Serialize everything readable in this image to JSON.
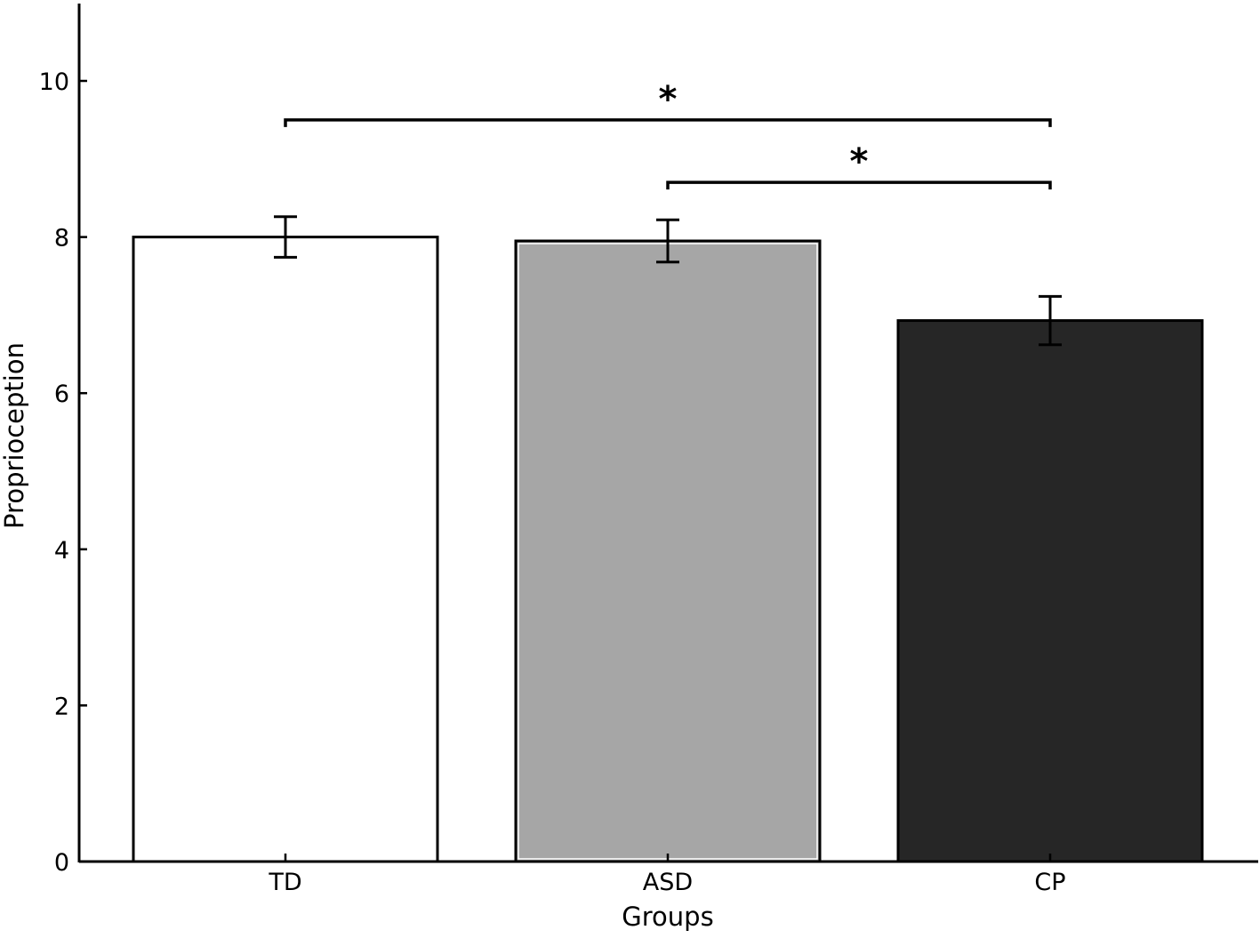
{
  "chart_data": {
    "type": "bar",
    "title": "",
    "xlabel": "Groups",
    "ylabel": "Proprioception",
    "categories": [
      "TD",
      "ASD",
      "CP"
    ],
    "values": [
      8.0,
      7.95,
      6.93
    ],
    "errors": [
      0.26,
      0.27,
      0.31
    ],
    "bar_colors": [
      "#ffffff",
      "#a6a6a6",
      "#262626"
    ],
    "ylim": [
      0,
      11
    ],
    "yticks": [
      0,
      2,
      4,
      6,
      8,
      10
    ],
    "ytick_labels": [
      "0",
      "2",
      "4",
      "6",
      "8",
      "10"
    ],
    "grid": false,
    "significance": [
      {
        "from": "TD",
        "to": "CP",
        "y": 9.5,
        "label": "*"
      },
      {
        "from": "ASD",
        "to": "CP",
        "y": 8.7,
        "label": "*"
      }
    ]
  }
}
